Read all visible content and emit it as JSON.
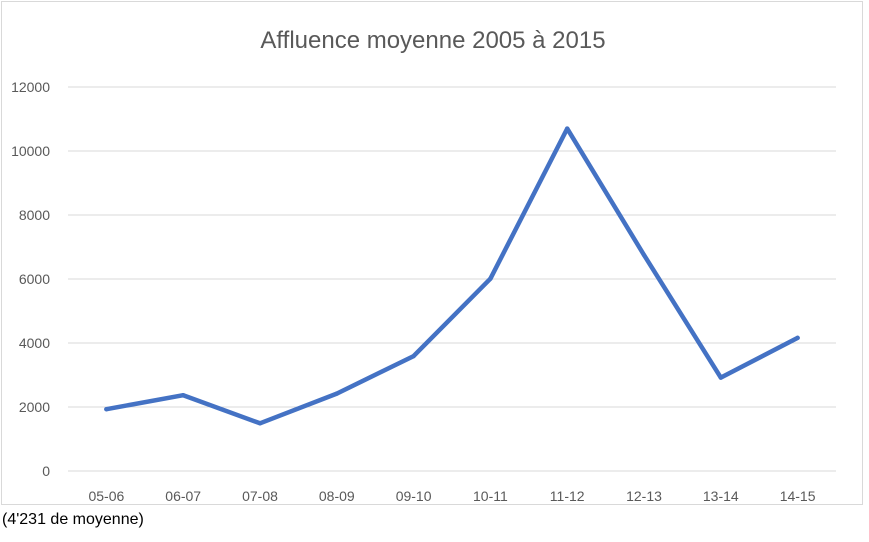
{
  "chart_data": {
    "type": "line",
    "title": "Affluence moyenne 2005 à 2015",
    "xlabel": "",
    "ylabel": "",
    "categories": [
      "05-06",
      "06-07",
      "07-08",
      "08-09",
      "09-10",
      "10-11",
      "11-12",
      "12-13",
      "13-14",
      "14-15"
    ],
    "series": [
      {
        "values": [
          1930,
          2370,
          1490,
          2420,
          3590,
          6010,
          10700,
          6750,
          2920,
          4160
        ]
      }
    ],
    "ylim": [
      0,
      12000
    ],
    "yticks": [
      0,
      2000,
      4000,
      6000,
      8000,
      10000,
      12000
    ],
    "grid": true,
    "legend": "none",
    "colors": {
      "line": "#4472c4",
      "grid": "#d9d9d9",
      "text": "#595959"
    }
  },
  "caption": "(4'231 de moyenne)"
}
